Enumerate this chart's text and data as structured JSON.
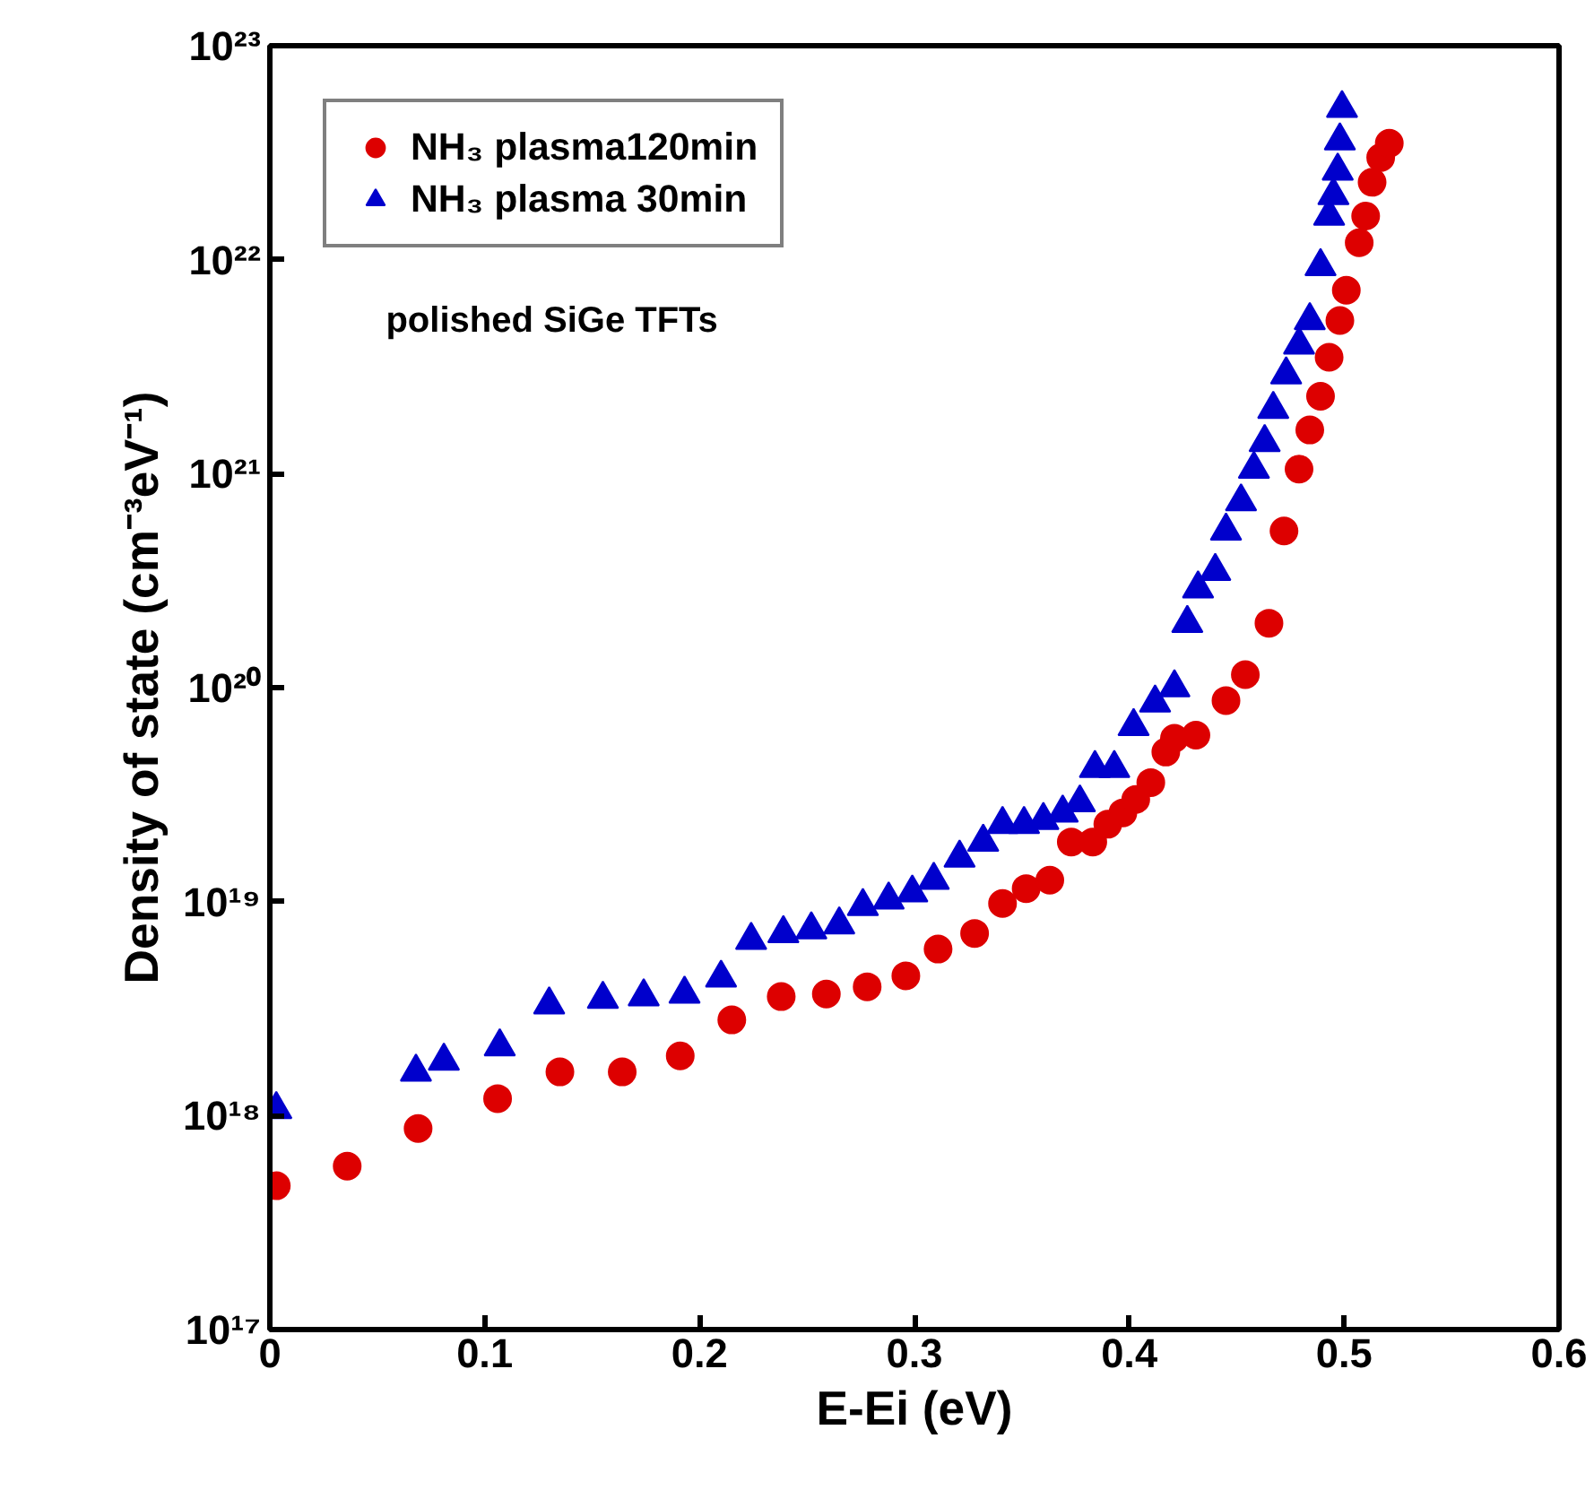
{
  "chart_data": {
    "type": "scatter",
    "xlabel": "E-Ei (eV)",
    "ylabel": "Density of state (cm⁻³eV⁻¹)",
    "annotations": [
      "polished SiGe TFTs"
    ],
    "log": "y",
    "grid": false,
    "legend": "top left",
    "xlim": [
      0,
      0.6
    ],
    "xticks": [
      0,
      0.1,
      0.2,
      0.3,
      0.4,
      0.5,
      0.6
    ],
    "ylim": [
      1e+17,
      1e+23
    ],
    "yticks": [
      {
        "value": 1e+17,
        "label": "10¹⁷"
      },
      {
        "value": 1e+18,
        "label": "10¹⁸"
      },
      {
        "value": 1e+19,
        "label": "10¹⁹"
      },
      {
        "value": 1e+20,
        "label": "10²⁰"
      },
      {
        "value": 1e+21,
        "label": "10²¹"
      },
      {
        "value": 1e+22,
        "label": "10²²"
      },
      {
        "value": 1e+23,
        "label": "10²³"
      }
    ],
    "series": [
      {
        "name": "NH₃ plasma120min",
        "color": "#dd0000",
        "marker": "circle",
        "x": [
          0.003,
          0.036,
          0.069,
          0.106,
          0.135,
          0.164,
          0.191,
          0.215,
          0.238,
          0.259,
          0.278,
          0.296,
          0.311,
          0.328,
          0.341,
          0.352,
          0.363,
          0.373,
          0.383,
          0.39,
          0.397,
          0.403,
          0.41,
          0.417,
          0.421,
          0.431,
          0.445,
          0.454,
          0.465,
          0.472,
          0.479,
          0.484,
          0.489,
          0.493,
          0.498,
          0.501,
          0.507,
          0.51,
          0.513,
          0.517,
          0.521
        ],
        "values": [
          4.7e+17,
          5.8e+17,
          8.7e+17,
          1.2e+18,
          1.6e+18,
          1.6e+18,
          1.9e+18,
          2.8e+18,
          3.6e+18,
          3.7e+18,
          4e+18,
          4.5e+18,
          6e+18,
          7.1e+18,
          9.8e+18,
          1.15e+19,
          1.26e+19,
          1.9e+19,
          1.9e+19,
          2.3e+19,
          2.6e+19,
          3e+19,
          3.6e+19,
          5e+19,
          5.8e+19,
          6e+19,
          8.7e+19,
          1.15e+20,
          2e+20,
          5.4e+20,
          1.05e+21,
          1.6e+21,
          2.3e+21,
          3.5e+21,
          5.2e+21,
          7.2e+21,
          1.2e+22,
          1.6e+22,
          2.3e+22,
          3e+22,
          3.5e+22
        ]
      },
      {
        "name": "NH₃ plasma 30min",
        "color": "#0000cc",
        "marker": "triangle",
        "x": [
          0.003,
          0.068,
          0.081,
          0.107,
          0.13,
          0.155,
          0.174,
          0.193,
          0.21,
          0.224,
          0.239,
          0.252,
          0.265,
          0.276,
          0.288,
          0.299,
          0.309,
          0.321,
          0.332,
          0.341,
          0.351,
          0.36,
          0.369,
          0.377,
          0.384,
          0.393,
          0.402,
          0.412,
          0.421,
          0.427,
          0.432,
          0.44,
          0.445,
          0.452,
          0.458,
          0.463,
          0.467,
          0.473,
          0.479,
          0.484,
          0.489,
          0.493,
          0.495,
          0.497,
          0.498,
          0.499
        ],
        "values": [
          1.07e+18,
          1.6e+18,
          1.8e+18,
          2.1e+18,
          3.3e+18,
          3.5e+18,
          3.6e+18,
          3.7e+18,
          4.4e+18,
          6.6e+18,
          7.1e+18,
          7.4e+18,
          7.8e+18,
          9.5e+18,
          1.02e+19,
          1.1e+19,
          1.26e+19,
          1.6e+19,
          1.9e+19,
          2.3e+19,
          2.3e+19,
          2.4e+19,
          2.6e+19,
          2.9e+19,
          4.2e+19,
          4.2e+19,
          6.6e+19,
          8.5e+19,
          1e+20,
          2e+20,
          2.9e+20,
          3.5e+20,
          5.4e+20,
          7.4e+20,
          1.05e+21,
          1.4e+21,
          2e+21,
          2.9e+21,
          4e+21,
          5.2e+21,
          9.3e+21,
          1.6e+22,
          2e+22,
          2.6e+22,
          3.6e+22,
          5.1e+22
        ]
      }
    ]
  }
}
